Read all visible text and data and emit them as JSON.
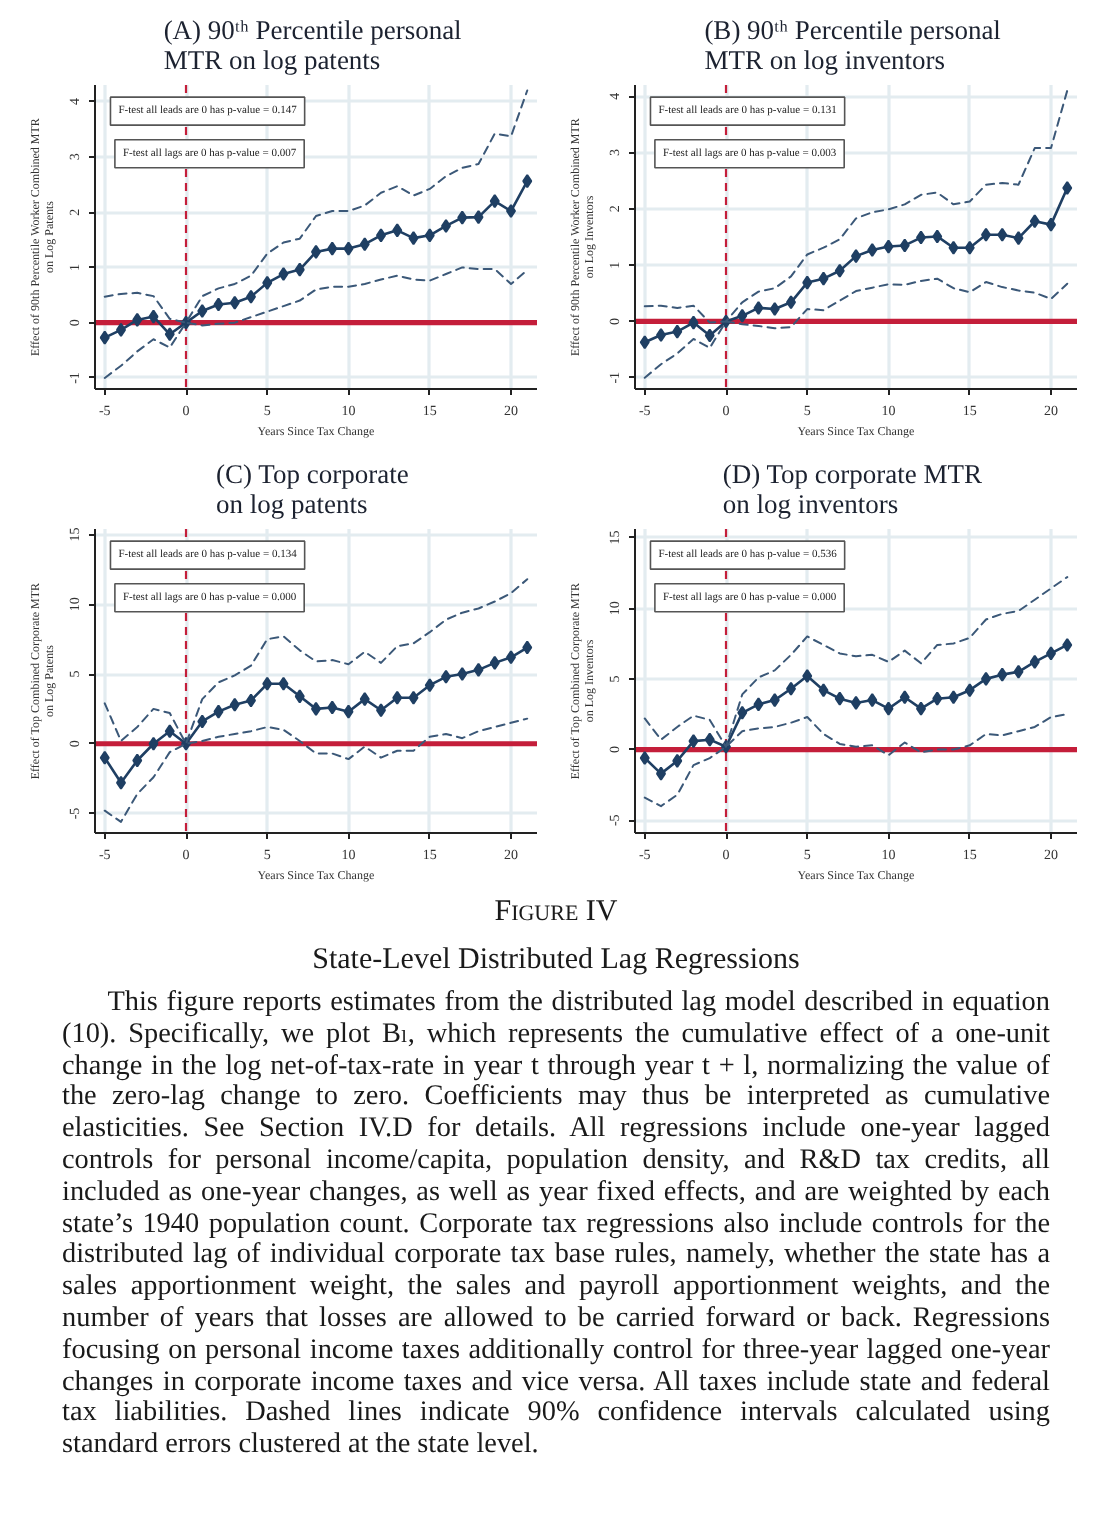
{
  "chart_data": [
    {
      "type": "line",
      "title": "(A)  90ᵗʰ Percentile personal\nMTR on log patents",
      "xlabel": "Years Since Tax Change",
      "ylabel": "Effect of 90th Percentile Worker Combined MTR\non Log Patents",
      "annotations": [
        "F-test all leads are 0 has p-value = 0.147",
        "F-test all lags are 0 has p-value = 0.007"
      ],
      "x": [
        -5,
        -4,
        -3,
        -2,
        -1,
        0,
        1,
        2,
        3,
        4,
        5,
        6,
        7,
        8,
        9,
        10,
        11,
        12,
        13,
        14,
        15,
        16,
        17,
        18,
        19,
        20,
        21
      ],
      "series": [
        {
          "color": "#1f3f63",
          "values": [
            -0.27,
            -0.13,
            0.05,
            0.11,
            -0.21,
            0,
            0.21,
            0.33,
            0.36,
            0.47,
            0.72,
            0.88,
            0.96,
            1.28,
            1.34,
            1.34,
            1.42,
            1.58,
            1.67,
            1.53,
            1.58,
            1.75,
            1.9,
            1.91,
            2.2,
            2.02,
            2.56
          ]
        },
        {
          "color": "#3b5878",
          "line_style": "dashed",
          "marker": "none",
          "values": [
            0.47,
            0.52,
            0.54,
            0.48,
            0.07,
            0,
            0.48,
            0.62,
            0.7,
            0.85,
            1.25,
            1.45,
            1.52,
            1.93,
            2.02,
            2.02,
            2.12,
            2.35,
            2.47,
            2.3,
            2.42,
            2.65,
            2.8,
            2.87,
            3.42,
            3.37,
            4.2
          ]
        },
        {
          "color": "#3b5878",
          "line_style": "dashed",
          "marker": "none",
          "values": [
            -1.0,
            -0.78,
            -0.52,
            -0.3,
            -0.45,
            0,
            -0.05,
            -0.02,
            0,
            0.1,
            0.2,
            0.3,
            0.4,
            0.6,
            0.65,
            0.65,
            0.7,
            0.78,
            0.85,
            0.78,
            0.76,
            0.88,
            1.0,
            0.97,
            0.97,
            0.7,
            0.95
          ]
        }
      ],
      "marker": "diamond",
      "line_style": "solid",
      "xlim": [
        -5.6,
        21.6
      ],
      "ylim": [
        -1.2,
        4.3
      ],
      "xticks": [
        -5,
        0,
        5,
        10,
        15,
        20
      ],
      "yticks": [
        -1,
        0,
        1,
        2,
        3,
        4
      ],
      "grid": true,
      "ref_lines": [
        {
          "axis": "y",
          "value": 0,
          "color": "#c41e3a"
        },
        {
          "axis": "x",
          "value": 0,
          "color": "#c41e3a",
          "line_style": "dashed"
        }
      ]
    },
    {
      "type": "line",
      "title": "(B)  90ᵗʰ Percentile personal\nMTR on log inventors",
      "xlabel": "Years Since Tax Change",
      "ylabel": "Effect of 90th Percentile Worker Combined MTR\non Log Inventors",
      "annotations": [
        "F-test all leads are 0 has p-value = 0.131",
        "F-test all lags are 0 has p-value = 0.003"
      ],
      "x": [
        -5,
        -4,
        -3,
        -2,
        -1,
        0,
        1,
        2,
        3,
        4,
        5,
        6,
        7,
        8,
        9,
        10,
        11,
        12,
        13,
        14,
        15,
        16,
        17,
        18,
        19,
        20,
        21
      ],
      "series": [
        {
          "color": "#1f3f63",
          "values": [
            -0.37,
            -0.24,
            -0.18,
            -0.02,
            -0.25,
            0,
            0.1,
            0.24,
            0.22,
            0.34,
            0.69,
            0.76,
            0.9,
            1.16,
            1.27,
            1.33,
            1.35,
            1.49,
            1.51,
            1.31,
            1.31,
            1.54,
            1.54,
            1.48,
            1.78,
            1.72,
            2.37
          ]
        },
        {
          "color": "#3b5878",
          "line_style": "dashed",
          "marker": "none",
          "values": [
            0.27,
            0.28,
            0.24,
            0.28,
            -0.02,
            0,
            0.34,
            0.53,
            0.59,
            0.8,
            1.19,
            1.31,
            1.46,
            1.83,
            1.94,
            1.99,
            2.08,
            2.25,
            2.29,
            2.08,
            2.13,
            2.43,
            2.46,
            2.43,
            3.08,
            3.08,
            4.1
          ]
        },
        {
          "color": "#3b5878",
          "line_style": "dashed",
          "marker": "none",
          "values": [
            -1.0,
            -0.76,
            -0.57,
            -0.31,
            -0.47,
            0,
            -0.05,
            -0.08,
            -0.12,
            -0.1,
            0.22,
            0.2,
            0.37,
            0.54,
            0.6,
            0.66,
            0.65,
            0.72,
            0.76,
            0.59,
            0.52,
            0.7,
            0.61,
            0.55,
            0.51,
            0.4,
            0.67
          ]
        }
      ],
      "marker": "diamond",
      "line_style": "solid",
      "xlim": [
        -5.6,
        21.6
      ],
      "ylim": [
        -1.2,
        4.2
      ],
      "xticks": [
        -5,
        0,
        5,
        10,
        15,
        20
      ],
      "yticks": [
        -1,
        0,
        1,
        2,
        3,
        4
      ],
      "grid": true,
      "ref_lines": [
        {
          "axis": "y",
          "value": 0,
          "color": "#c41e3a"
        },
        {
          "axis": "x",
          "value": 0,
          "color": "#c41e3a",
          "line_style": "dashed"
        }
      ]
    },
    {
      "type": "line",
      "title": "(C)  Top corporate\non log patents",
      "xlabel": "Years Since Tax Change",
      "ylabel": "Effect of Top Combined Corporate MTR\non Log Patents",
      "annotations": [
        "F-test all leads are 0 has p-value = 0.134",
        "F-test all lags are 0 has p-value = 0.000"
      ],
      "x": [
        -5,
        -4,
        -3,
        -2,
        -1,
        0,
        1,
        2,
        3,
        4,
        5,
        6,
        7,
        8,
        9,
        10,
        11,
        12,
        13,
        14,
        15,
        16,
        17,
        18,
        19,
        20,
        21
      ],
      "series": [
        {
          "color": "#1f3f63",
          "values": [
            -1.0,
            -2.8,
            -1.2,
            0.0,
            0.9,
            0,
            1.6,
            2.3,
            2.8,
            3.1,
            4.3,
            4.3,
            3.4,
            2.5,
            2.6,
            2.3,
            3.2,
            2.4,
            3.3,
            3.3,
            4.2,
            4.8,
            5.0,
            5.3,
            5.8,
            6.2,
            6.9
          ]
        },
        {
          "color": "#3b5878",
          "line_style": "dashed",
          "marker": "none",
          "values": [
            2.9,
            0.2,
            1.2,
            2.5,
            2.2,
            0,
            3.2,
            4.4,
            4.9,
            5.6,
            7.5,
            7.7,
            6.7,
            5.9,
            6.0,
            5.7,
            6.6,
            5.8,
            7.0,
            7.2,
            8.0,
            8.9,
            9.4,
            9.7,
            10.2,
            10.8,
            11.8
          ]
        },
        {
          "color": "#3b5878",
          "line_style": "dashed",
          "marker": "none",
          "values": [
            -4.8,
            -5.6,
            -3.6,
            -2.4,
            -0.6,
            0,
            0.2,
            0.5,
            0.7,
            0.9,
            1.2,
            1.0,
            0.2,
            -0.7,
            -0.7,
            -1.1,
            -0.2,
            -1.0,
            -0.5,
            -0.5,
            0.5,
            0.7,
            0.4,
            0.9,
            1.2,
            1.5,
            1.8
          ]
        }
      ],
      "marker": "diamond",
      "line_style": "solid",
      "xlim": [
        -5.6,
        21.6
      ],
      "ylim": [
        -6.4,
        15.4
      ],
      "xticks": [
        -5,
        0,
        5,
        10,
        15,
        20
      ],
      "yticks": [
        -5,
        0,
        5,
        10,
        15
      ],
      "grid": true,
      "ref_lines": [
        {
          "axis": "y",
          "value": 0,
          "color": "#c41e3a"
        },
        {
          "axis": "x",
          "value": 0,
          "color": "#c41e3a",
          "line_style": "dashed"
        }
      ]
    },
    {
      "type": "line",
      "title": "(D)  Top corporate MTR\non log inventors",
      "xlabel": "Years Since Tax Change",
      "ylabel": "Effect of Top Combined Corporate MTR\non Log Inventors",
      "annotations": [
        "F-test all leads are 0 has p-value = 0.536",
        "F-test all lags are 0 has p-value = 0.000"
      ],
      "x": [
        -5,
        -4,
        -3,
        -2,
        -1,
        0,
        1,
        2,
        3,
        4,
        5,
        6,
        7,
        8,
        9,
        10,
        11,
        12,
        13,
        14,
        15,
        16,
        17,
        18,
        19,
        20,
        21
      ],
      "series": [
        {
          "color": "#1f3f63",
          "values": [
            -0.6,
            -1.7,
            -0.8,
            0.6,
            0.7,
            0.2,
            2.6,
            3.2,
            3.5,
            4.3,
            5.2,
            4.2,
            3.6,
            3.3,
            3.5,
            2.9,
            3.7,
            2.9,
            3.6,
            3.7,
            4.2,
            5.0,
            5.3,
            5.5,
            6.2,
            6.8,
            7.4
          ]
        },
        {
          "color": "#3b5878",
          "line_style": "dashed",
          "marker": "none",
          "values": [
            2.2,
            0.7,
            1.6,
            2.4,
            2.1,
            0.2,
            3.9,
            5.1,
            5.6,
            6.7,
            8.0,
            7.4,
            6.8,
            6.6,
            6.7,
            6.2,
            7.0,
            6.1,
            7.4,
            7.5,
            7.9,
            9.2,
            9.6,
            9.8,
            10.6,
            11.4,
            12.2
          ]
        },
        {
          "color": "#3b5878",
          "line_style": "dashed",
          "marker": "none",
          "values": [
            -3.4,
            -4.0,
            -3.2,
            -1.1,
            -0.6,
            0.2,
            1.3,
            1.5,
            1.6,
            1.9,
            2.3,
            1.1,
            0.4,
            0.2,
            0.3,
            -0.4,
            0.5,
            -0.2,
            0,
            0,
            0.3,
            1.1,
            1.0,
            1.3,
            1.6,
            2.3,
            2.5
          ]
        }
      ],
      "marker": "diamond",
      "line_style": "solid",
      "xlim": [
        -5.6,
        21.6
      ],
      "ylim": [
        -5.9,
        15.6
      ],
      "xticks": [
        -5,
        0,
        5,
        10,
        15,
        20
      ],
      "yticks": [
        -5,
        0,
        5,
        10,
        15
      ],
      "grid": true,
      "ref_lines": [
        {
          "axis": "y",
          "value": 0,
          "color": "#c41e3a"
        },
        {
          "axis": "x",
          "value": 0,
          "color": "#c41e3a",
          "line_style": "dashed"
        }
      ]
    },
    {
      "type": "other",
      "title": "Figure IV",
      "subtitle": "State-Level Distributed Lag Regressions",
      "annotations": [
        "This figure reports estimates from the distributed lag model described in equation (10). Specifically, we plot Bₗ, which represents the cumulative effect of a one-unit change in the log net-of-tax-rate in year t through year t + l, normalizing the value of the zero-lag change to zero. Coefficients may thus be interpreted as cumulative elasticities. See Section IV.D for details. All regressions include one-year lagged controls for personal income/capita, population density, and R&D tax credits, all included as one-year changes, as well as year fixed effects, and are weighted by each state’s 1940 population count. Corporate tax regressions also include controls for the distributed lag of individual corporate tax base rules, namely, whether the state has a sales apportionment weight, the sales and payroll apportionment weights, and the number of years that losses are allowed to be carried forward or back. Regressions focusing on personal income taxes additionally control for three-year lagged one-year changes in corporate income taxes and vice versa. All taxes include state and federal tax liabilities. Dashed lines indicate 90% confidence intervals calculated using standard errors clustered at the state level."
      ]
    }
  ]
}
